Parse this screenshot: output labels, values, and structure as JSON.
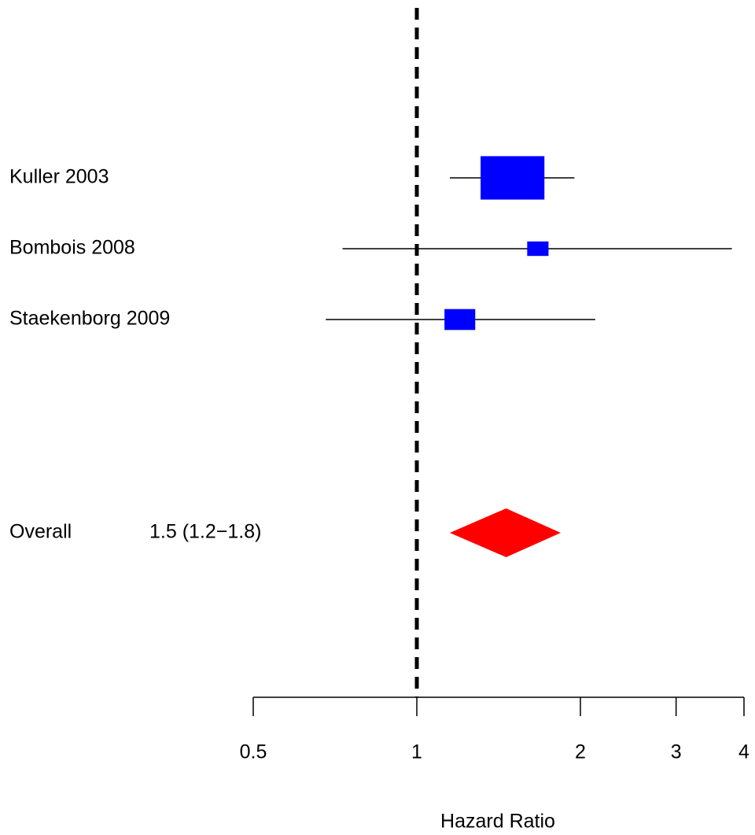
{
  "chart_data": {
    "type": "forest",
    "categories": [
      "Kuller 2003",
      "Bombois 2008",
      "Staekenborg 2009"
    ],
    "values": [
      1.5,
      1.67,
      1.2
    ],
    "lower": [
      1.15,
      0.73,
      0.68
    ],
    "upper": [
      1.95,
      3.8,
      2.13
    ],
    "weights": [
      74.5,
      8.3,
      17.3
    ],
    "color": "#0000ff",
    "overall": {
      "label": "Overall",
      "value": 1.46,
      "lower": 1.15,
      "upper": 1.84,
      "value_label": "1.5 (1.2−1.8)",
      "color": "#ff0000"
    },
    "reference": 1,
    "xlabel": "Hazard Ratio",
    "log_x": true,
    "xlim": [
      0.5,
      4
    ],
    "xticks": [
      0.5,
      1,
      2,
      3,
      4
    ]
  }
}
